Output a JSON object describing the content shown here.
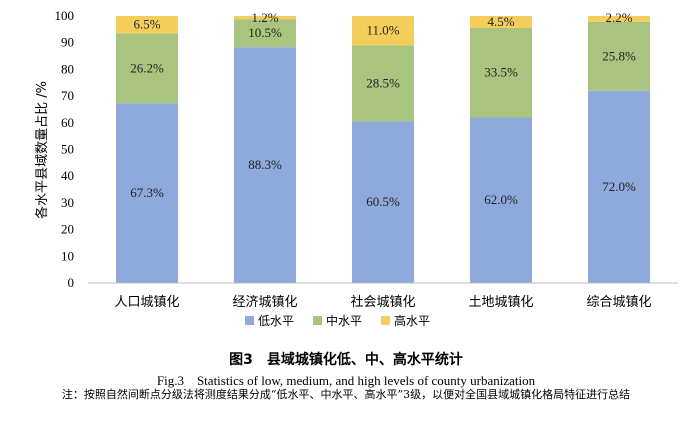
{
  "chart_data": {
    "type": "bar",
    "stacked": true,
    "ylabel": "各水平县域数量占比 /%",
    "ylim": [
      0,
      100
    ],
    "yticks": [
      0,
      10,
      20,
      30,
      40,
      50,
      60,
      70,
      80,
      90,
      100
    ],
    "grid": false,
    "legend_position": "bottom",
    "categories": [
      "人口城镇化",
      "经济城镇化",
      "社会城镇化",
      "土地城镇化",
      "综合城镇化"
    ],
    "series": [
      {
        "name": "低水平",
        "color": "#8EA9DB",
        "values": [
          67.3,
          88.3,
          60.5,
          62.0,
          72.0
        ],
        "labels": [
          "67.3%",
          "88.3%",
          "60.5%",
          "62.0%",
          "72.0%"
        ]
      },
      {
        "name": "中水平",
        "color": "#A9C47F",
        "values": [
          26.2,
          10.5,
          28.5,
          33.5,
          25.8
        ],
        "labels": [
          "26.2%",
          "10.5%",
          "28.5%",
          "33.5%",
          "25.8%"
        ]
      },
      {
        "name": "高水平",
        "color": "#F5CD5B",
        "values": [
          6.5,
          1.2,
          11.0,
          4.5,
          2.2
        ],
        "labels": [
          "6.5%",
          "1.2%",
          "11.0%",
          "4.5%",
          "2.2%"
        ]
      }
    ]
  },
  "caption": {
    "title_zh": "图3　县域城镇化低、中、高水平统计",
    "title_en": "Fig.3　Statistics of low, medium, and high levels of county urbanization",
    "note": "注：按照自然间断点分级法将测度结果分成“低水平、中水平、高水平”3级，以便对全国县域城镇化格局特征进行总结"
  }
}
